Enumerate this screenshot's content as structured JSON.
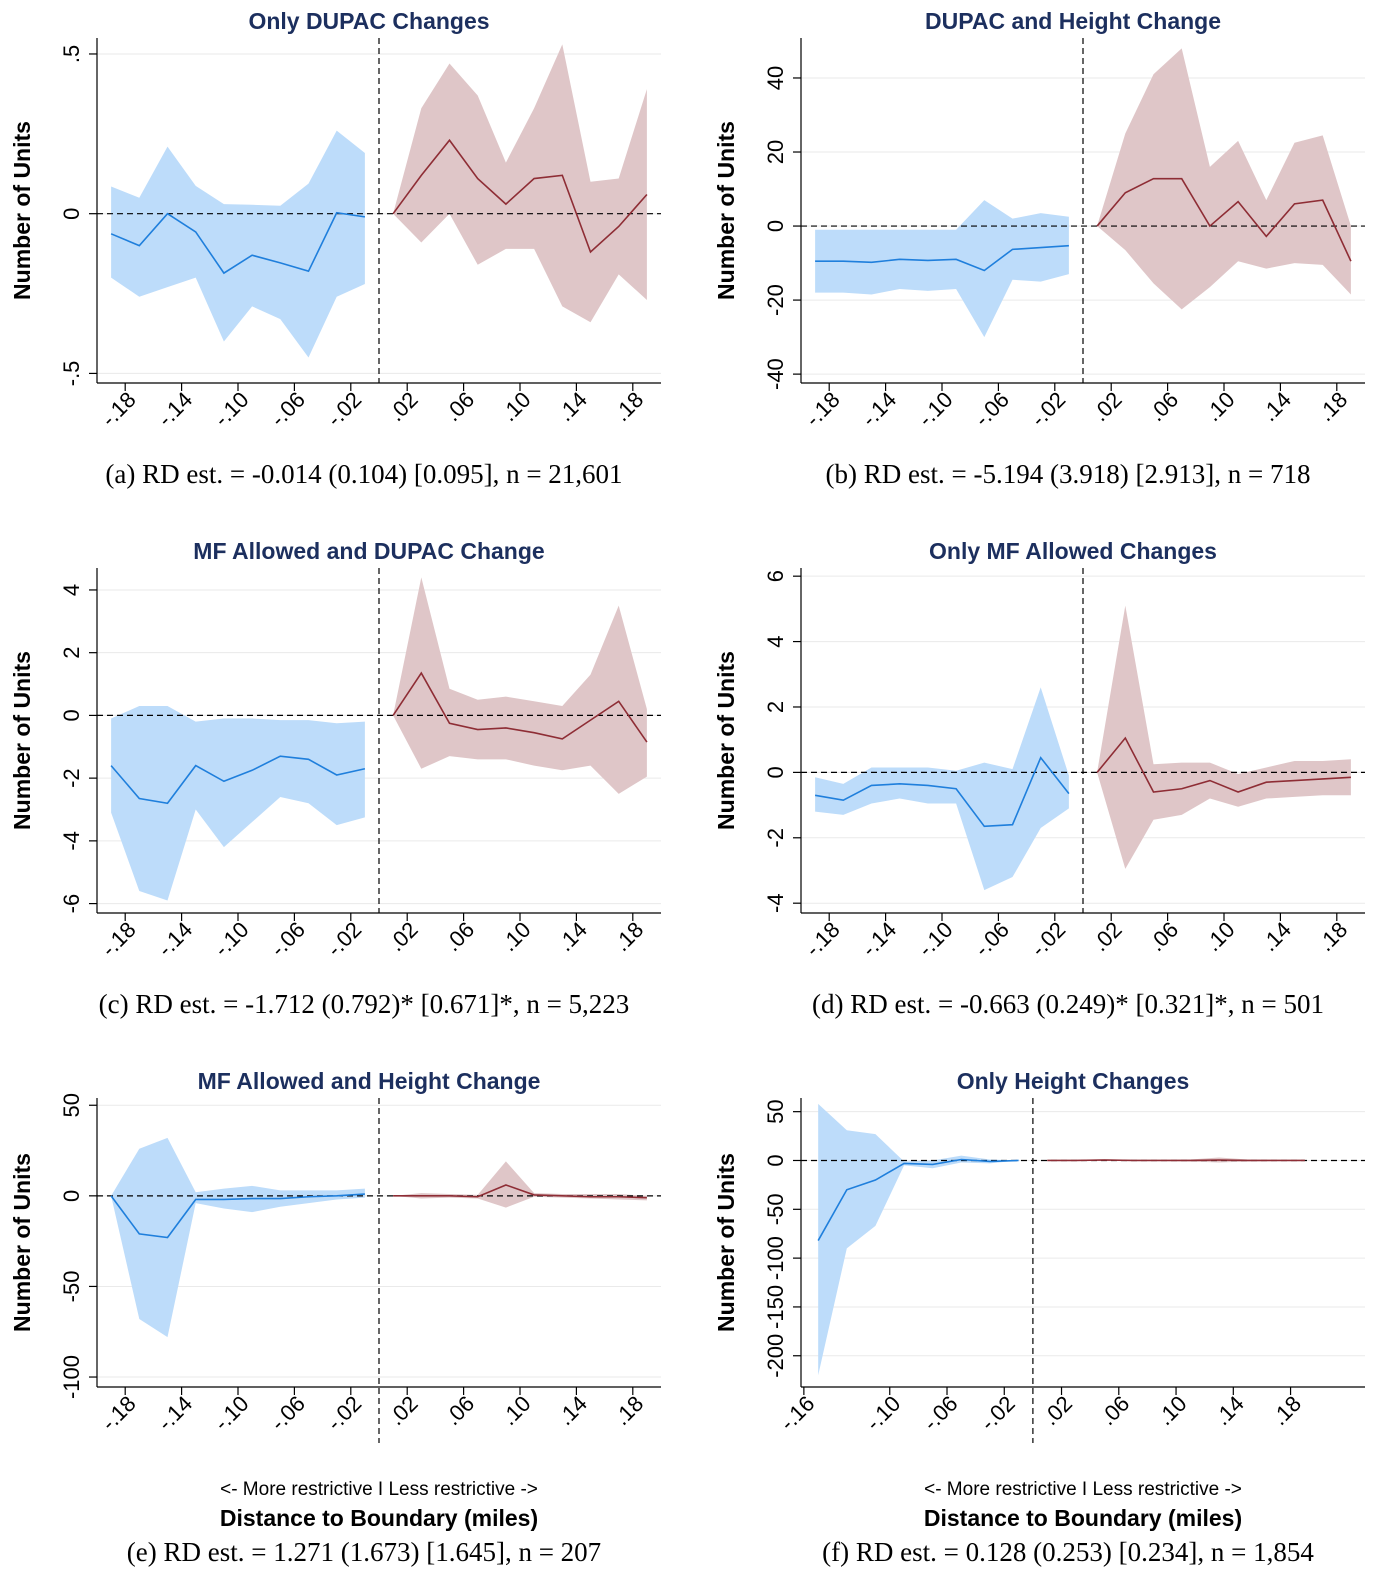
{
  "chart_data": [
    {
      "type": "line",
      "title": "Only DUPAC Changes",
      "ylabel": "Number of Units",
      "caption": "(a) RD est. = -0.014 (0.104) [0.095], n = 21,601",
      "xlim": [
        -0.2,
        0.2
      ],
      "ylim": [
        -0.53,
        0.55
      ],
      "xticks": [
        {
          "value": -0.18,
          "label": "-.18"
        },
        {
          "value": -0.14,
          "label": "-.14"
        },
        {
          "value": -0.1,
          "label": "-.10"
        },
        {
          "value": -0.06,
          "label": "-.06"
        },
        {
          "value": -0.02,
          "label": "-.02"
        },
        {
          "value": 0.02,
          "label": ".02"
        },
        {
          "value": 0.06,
          "label": ".06"
        },
        {
          "value": 0.1,
          "label": ".10"
        },
        {
          "value": 0.14,
          "label": ".14"
        },
        {
          "value": 0.18,
          "label": ".18"
        }
      ],
      "yticks": [
        {
          "value": -0.5,
          "label": "-.5"
        },
        0,
        {
          "value": 0.5,
          "label": ".5"
        }
      ],
      "grid": true,
      "series": [
        {
          "color": "#1f7fdc",
          "band_color": "#bddcfa",
          "x": [
            -0.19,
            -0.17,
            -0.15,
            -0.13,
            -0.11,
            -0.09,
            -0.07,
            -0.05,
            -0.03,
            -0.01
          ],
          "values": [
            -0.063,
            -0.1,
            0,
            -0.057,
            -0.186,
            -0.13,
            -0.154,
            -0.18,
            0.003,
            -0.01
          ],
          "lower": [
            -0.2,
            -0.26,
            -0.23,
            -0.2,
            -0.4,
            -0.29,
            -0.33,
            -0.45,
            -0.26,
            -0.22
          ],
          "upper": [
            0.085,
            0.05,
            0.21,
            0.087,
            0.03,
            0.028,
            0.025,
            0.094,
            0.26,
            0.19
          ]
        },
        {
          "color": "#8e2d35",
          "band_color": "#dfc6c8",
          "x": [
            0.01,
            0.03,
            0.05,
            0.07,
            0.09,
            0.11,
            0.13,
            0.15,
            0.17,
            0.19
          ],
          "values": [
            0,
            0.12,
            0.23,
            0.11,
            0.03,
            0.11,
            0.12,
            -0.12,
            -0.04,
            0.06
          ],
          "lower": [
            0,
            -0.09,
            0,
            -0.16,
            -0.11,
            -0.11,
            -0.29,
            -0.34,
            -0.19,
            -0.27
          ],
          "upper": [
            0,
            0.33,
            0.47,
            0.37,
            0.16,
            0.33,
            0.53,
            0.1,
            0.11,
            0.39
          ]
        }
      ]
    },
    {
      "type": "line",
      "title": "DUPAC and Height Change",
      "ylabel": "Number of Units",
      "caption": "(b) RD est. = -5.194 (3.918) [2.913], n = 718",
      "xlim": [
        -0.2,
        0.2
      ],
      "ylim": [
        -42.4,
        50.8
      ],
      "xticks": [
        {
          "value": -0.18,
          "label": "-.18"
        },
        {
          "value": -0.14,
          "label": "-.14"
        },
        {
          "value": -0.1,
          "label": "-.10"
        },
        {
          "value": -0.06,
          "label": "-.06"
        },
        {
          "value": -0.02,
          "label": "-.02"
        },
        {
          "value": 0.02,
          "label": ".02"
        },
        {
          "value": 0.06,
          "label": ".06"
        },
        {
          "value": 0.1,
          "label": ".10"
        },
        {
          "value": 0.14,
          "label": ".14"
        },
        {
          "value": 0.18,
          "label": ".18"
        }
      ],
      "yticks": [
        -40,
        -20,
        0,
        20,
        40
      ],
      "grid": true,
      "series": [
        {
          "color": "#1f7fdc",
          "band_color": "#bddcfa",
          "x": [
            -0.19,
            -0.17,
            -0.15,
            -0.13,
            -0.11,
            -0.09,
            -0.07,
            -0.05,
            -0.03,
            -0.01
          ],
          "values": [
            -9.5,
            -9.5,
            -9.8,
            -9,
            -9.3,
            -9,
            -12,
            -6.3,
            -5.8,
            -5.3
          ],
          "lower": [
            -18,
            -18,
            -18.5,
            -17,
            -17.5,
            -17,
            -30,
            -14.5,
            -15,
            -13
          ],
          "upper": [
            -1,
            -1,
            -1,
            -1,
            -1,
            -1,
            7,
            2,
            3.5,
            2.5
          ]
        },
        {
          "color": "#8e2d35",
          "band_color": "#dfc6c8",
          "x": [
            0.01,
            0.03,
            0.05,
            0.07,
            0.09,
            0.11,
            0.13,
            0.15,
            0.17,
            0.19
          ],
          "values": [
            0,
            9,
            12.8,
            12.8,
            0,
            6.6,
            -2.8,
            6,
            7,
            -9.5
          ],
          "lower": [
            0,
            -6.5,
            -15.5,
            -22.5,
            -16.5,
            -9.5,
            -11.5,
            -10,
            -10.5,
            -18.5
          ],
          "upper": [
            0,
            25,
            41,
            48,
            16,
            23,
            7,
            22.5,
            24.5,
            0
          ]
        }
      ]
    },
    {
      "type": "line",
      "title": "MF Allowed and DUPAC Change",
      "ylabel": "Number of Units",
      "caption": "(c) RD est. = -1.712 (0.792)* [0.671]*, n = 5,223",
      "xlim": [
        -0.2,
        0.2
      ],
      "ylim": [
        -6.3,
        4.7
      ],
      "xticks": [
        {
          "value": -0.18,
          "label": "-.18"
        },
        {
          "value": -0.14,
          "label": "-.14"
        },
        {
          "value": -0.1,
          "label": "-.10"
        },
        {
          "value": -0.06,
          "label": "-.06"
        },
        {
          "value": -0.02,
          "label": "-.02"
        },
        {
          "value": 0.02,
          "label": ".02"
        },
        {
          "value": 0.06,
          "label": ".06"
        },
        {
          "value": 0.1,
          "label": ".10"
        },
        {
          "value": 0.14,
          "label": ".14"
        },
        {
          "value": 0.18,
          "label": ".18"
        }
      ],
      "yticks": [
        -6,
        -4,
        -2,
        0,
        2,
        4
      ],
      "grid": true,
      "series": [
        {
          "color": "#1f7fdc",
          "band_color": "#bddcfa",
          "x": [
            -0.19,
            -0.17,
            -0.15,
            -0.13,
            -0.11,
            -0.09,
            -0.07,
            -0.05,
            -0.03,
            -0.01
          ],
          "values": [
            -1.6,
            -2.65,
            -2.8,
            -1.6,
            -2.1,
            -1.75,
            -1.3,
            -1.4,
            -1.9,
            -1.7
          ],
          "lower": [
            -3.1,
            -5.6,
            -5.9,
            -3,
            -4.2,
            -3.4,
            -2.6,
            -2.8,
            -3.5,
            -3.25
          ],
          "upper": [
            -0.1,
            0.3,
            0.3,
            -0.2,
            -0.1,
            -0.1,
            -0.15,
            -0.15,
            -0.25,
            -0.2
          ]
        },
        {
          "color": "#8e2d35",
          "band_color": "#dfc6c8",
          "x": [
            0.01,
            0.03,
            0.05,
            0.07,
            0.09,
            0.11,
            0.13,
            0.15,
            0.17,
            0.19
          ],
          "values": [
            0,
            1.35,
            -0.25,
            -0.45,
            -0.4,
            -0.55,
            -0.75,
            -0.15,
            0.45,
            -0.85
          ],
          "lower": [
            0,
            -1.7,
            -1.3,
            -1.4,
            -1.4,
            -1.6,
            -1.75,
            -1.6,
            -2.5,
            -1.95
          ],
          "upper": [
            0,
            4.4,
            0.85,
            0.5,
            0.6,
            0.45,
            0.3,
            1.3,
            3.5,
            0.2
          ]
        }
      ]
    },
    {
      "type": "line",
      "title": "Only MF Allowed Changes",
      "ylabel": "Number of Units",
      "caption": "(d) RD est. = -0.663 (0.249)* [0.321]*, n = 501",
      "xlim": [
        -0.2,
        0.2
      ],
      "ylim": [
        -4.3,
        6.25
      ],
      "xticks": [
        {
          "value": -0.18,
          "label": "-.18"
        },
        {
          "value": -0.14,
          "label": "-.14"
        },
        {
          "value": -0.1,
          "label": "-.10"
        },
        {
          "value": -0.06,
          "label": "-.06"
        },
        {
          "value": -0.02,
          "label": "-.02"
        },
        {
          "value": 0.02,
          "label": ".02"
        },
        {
          "value": 0.06,
          "label": ".06"
        },
        {
          "value": 0.1,
          "label": ".10"
        },
        {
          "value": 0.14,
          "label": ".14"
        },
        {
          "value": 0.18,
          "label": ".18"
        }
      ],
      "yticks": [
        -4,
        -2,
        0,
        2,
        4,
        6
      ],
      "grid": true,
      "series": [
        {
          "color": "#1f7fdc",
          "band_color": "#bddcfa",
          "x": [
            -0.19,
            -0.17,
            -0.15,
            -0.13,
            -0.11,
            -0.09,
            -0.07,
            -0.05,
            -0.03,
            -0.01
          ],
          "values": [
            -0.7,
            -0.85,
            -0.4,
            -0.35,
            -0.4,
            -0.5,
            -1.65,
            -1.6,
            0.45,
            -0.65
          ],
          "lower": [
            -1.2,
            -1.3,
            -0.95,
            -0.8,
            -0.95,
            -0.95,
            -3.6,
            -3.2,
            -1.7,
            -1.1
          ],
          "upper": [
            -0.15,
            -0.35,
            0.15,
            0.15,
            0.15,
            0.05,
            0.3,
            0.1,
            2.6,
            -0.1
          ]
        },
        {
          "color": "#8e2d35",
          "band_color": "#dfc6c8",
          "x": [
            0.01,
            0.03,
            0.05,
            0.07,
            0.09,
            0.11,
            0.13,
            0.15,
            0.17,
            0.19
          ],
          "values": [
            0,
            1.05,
            -0.6,
            -0.5,
            -0.25,
            -0.6,
            -0.3,
            -0.25,
            -0.2,
            -0.15
          ],
          "lower": [
            0,
            -2.95,
            -1.45,
            -1.3,
            -0.8,
            -1.05,
            -0.8,
            -0.75,
            -0.7,
            -0.7
          ],
          "upper": [
            0,
            5.1,
            0.25,
            0.3,
            0.3,
            -0.05,
            0.15,
            0.35,
            0.35,
            0.4
          ]
        }
      ]
    },
    {
      "type": "line",
      "title": "MF Allowed and Height Change",
      "ylabel": "Number of Units",
      "caption": "(e) RD est. = 1.271 (1.673) [1.645], n = 207",
      "xlabel_note": "<- More restrictive  I  Less restrictive ->",
      "xlabel": "Distance to Boundary (miles)",
      "xlim": [
        -0.2,
        0.2
      ],
      "ylim": [
        -105.5,
        54
      ],
      "xticks": [
        {
          "value": -0.18,
          "label": "-.18"
        },
        {
          "value": -0.14,
          "label": "-.14"
        },
        {
          "value": -0.1,
          "label": "-.10"
        },
        {
          "value": -0.06,
          "label": "-.06"
        },
        {
          "value": -0.02,
          "label": "-.02"
        },
        {
          "value": 0.02,
          "label": ".02"
        },
        {
          "value": 0.06,
          "label": ".06"
        },
        {
          "value": 0.1,
          "label": ".10"
        },
        {
          "value": 0.14,
          "label": ".14"
        },
        {
          "value": 0.18,
          "label": ".18"
        }
      ],
      "yticks": [
        -100,
        -50,
        0,
        50
      ],
      "grid": true,
      "series": [
        {
          "color": "#1f7fdc",
          "band_color": "#bddcfa",
          "x": [
            -0.19,
            -0.17,
            -0.15,
            -0.13,
            -0.11,
            -0.09,
            -0.07,
            -0.05,
            -0.03,
            -0.01
          ],
          "values": [
            0,
            -21,
            -23,
            -2,
            -2,
            -1.5,
            -1.5,
            -0.5,
            0,
            1
          ],
          "lower": [
            0,
            -68,
            -78,
            -4,
            -7,
            -9,
            -6,
            -4,
            -2,
            -1
          ],
          "upper": [
            0,
            26,
            32,
            2,
            4,
            5.5,
            3,
            3,
            3,
            4
          ]
        },
        {
          "color": "#8e2d35",
          "band_color": "#dfc6c8",
          "x": [
            0.01,
            0.03,
            0.05,
            0.07,
            0.09,
            0.11,
            0.13,
            0.15,
            0.17,
            0.19
          ],
          "values": [
            0,
            0,
            0,
            -0.5,
            6,
            0.5,
            0,
            -0.5,
            -0.5,
            -1
          ],
          "lower": [
            0,
            -1.5,
            -1,
            -1.5,
            -6.5,
            -0.5,
            -1,
            -1.5,
            -2,
            -2.5
          ],
          "upper": [
            0,
            1.5,
            1,
            0.5,
            19,
            1.5,
            1,
            1,
            1,
            0
          ]
        }
      ]
    },
    {
      "type": "line",
      "title": "Only Height Changes",
      "ylabel": "Number of Units",
      "caption": "(f) RD est. = 0.128 (0.253) [0.234], n = 1,854",
      "xlabel_note": "<- More restrictive  I  Less restrictive ->",
      "xlabel": "Distance to Boundary (miles)",
      "xlim": [
        -0.162,
        0.232
      ],
      "ylim": [
        -232,
        64
      ],
      "xticks": [
        {
          "value": -0.16,
          "label": "-.16"
        },
        {
          "value": -0.1,
          "label": "-.10"
        },
        {
          "value": -0.06,
          "label": "-.06"
        },
        {
          "value": -0.02,
          "label": "-.02"
        },
        {
          "value": 0.02,
          "label": ".02"
        },
        {
          "value": 0.06,
          "label": ".06"
        },
        {
          "value": 0.1,
          "label": ".10"
        },
        {
          "value": 0.14,
          "label": ".14"
        },
        {
          "value": 0.18,
          "label": ".18"
        }
      ],
      "yticks": [
        -200,
        -150,
        -100,
        -50,
        0,
        50
      ],
      "grid": true,
      "series": [
        {
          "color": "#1f7fdc",
          "band_color": "#bddcfa",
          "x": [
            -0.15,
            -0.13,
            -0.11,
            -0.09,
            -0.07,
            -0.05,
            -0.03,
            -0.01
          ],
          "values": [
            -82,
            -30,
            -20,
            -3,
            -4,
            1,
            -1,
            0
          ],
          "lower": [
            -220,
            -90,
            -67,
            -5,
            -8,
            -2,
            -3,
            0
          ],
          "upper": [
            58,
            31,
            27,
            -1,
            0,
            5,
            1,
            0
          ]
        },
        {
          "color": "#8e2d35",
          "band_color": "#dfc6c8",
          "x": [
            0.01,
            0.03,
            0.05,
            0.07,
            0.09,
            0.11,
            0.13,
            0.15,
            0.17,
            0.19
          ],
          "values": [
            0,
            0,
            0.5,
            0,
            0,
            0,
            0.5,
            0,
            0,
            0
          ],
          "lower": [
            0,
            -0.5,
            -0.5,
            -0.5,
            -0.5,
            -1,
            -2,
            -1,
            -0.5,
            0
          ],
          "upper": [
            0,
            0.5,
            1.5,
            0.5,
            0.5,
            1,
            3,
            1,
            0.5,
            0
          ]
        }
      ]
    }
  ]
}
